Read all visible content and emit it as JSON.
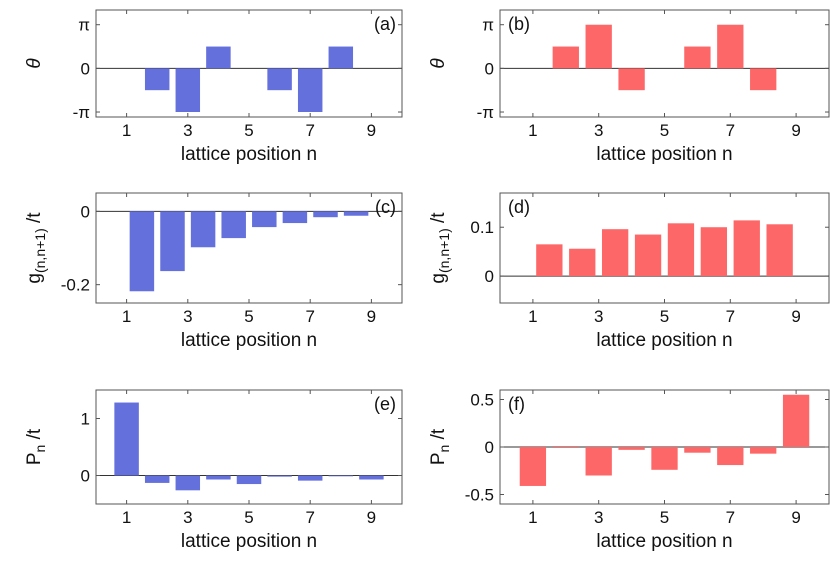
{
  "figure": {
    "bar_colors": {
      "blue": "#6470dc",
      "red": "#fe6767"
    }
  },
  "chart_data": [
    {
      "id": "a",
      "type": "bar",
      "panel_label": "(a)",
      "xlabel": "lattice position n",
      "ylabel": "θ",
      "xlim": [
        0,
        10
      ],
      "xticks": [
        1,
        3,
        5,
        7,
        9
      ],
      "xtick_labels": [
        "1",
        "3",
        "5",
        "7",
        "9"
      ],
      "ylim": [
        -3.5,
        4.2
      ],
      "yticks": [
        -3.14159,
        0,
        3.14159
      ],
      "ytick_labels": [
        "-π",
        "0",
        "π"
      ],
      "color": "#6470dc",
      "x": [
        2,
        3,
        4,
        6,
        7,
        8
      ],
      "values": [
        -1.57,
        -3.14,
        1.57,
        -1.57,
        -3.14,
        1.57
      ],
      "legend": null
    },
    {
      "id": "b",
      "type": "bar",
      "panel_label": "(b)",
      "xlabel": "lattice position n",
      "ylabel": "θ",
      "xlim": [
        0,
        10
      ],
      "xticks": [
        1,
        3,
        5,
        7,
        9
      ],
      "xtick_labels": [
        "1",
        "3",
        "5",
        "7",
        "9"
      ],
      "ylim": [
        -3.5,
        4.2
      ],
      "yticks": [
        -3.14159,
        0,
        3.14159
      ],
      "ytick_labels": [
        "-π",
        "0",
        "π"
      ],
      "color": "#fe6767",
      "x": [
        2,
        3,
        4,
        6,
        7,
        8
      ],
      "values": [
        1.57,
        3.14,
        -1.57,
        1.57,
        3.14,
        -1.57
      ],
      "legend": null
    },
    {
      "id": "c",
      "type": "bar",
      "panel_label": "(c)",
      "xlabel": "lattice position n",
      "ylabel_main": "g",
      "ylabel_sub": "(n,n+1)",
      "ylabel_tail": "/t",
      "xlim": [
        0,
        10
      ],
      "xticks": [
        1,
        3,
        5,
        7,
        9
      ],
      "xtick_labels": [
        "1",
        "3",
        "5",
        "7",
        "9"
      ],
      "ylim": [
        -0.25,
        0.05
      ],
      "yticks": [
        -0.2,
        0
      ],
      "ytick_labels": [
        "-0.2",
        "0"
      ],
      "color": "#6470dc",
      "x": [
        1.5,
        2.5,
        3.5,
        4.5,
        5.5,
        6.5,
        7.5,
        8.5
      ],
      "values": [
        -0.218,
        -0.163,
        -0.098,
        -0.073,
        -0.043,
        -0.032,
        -0.016,
        -0.012
      ],
      "legend": null
    },
    {
      "id": "d",
      "type": "bar",
      "panel_label": "(d)",
      "xlabel": "lattice position n",
      "ylabel_main": "g",
      "ylabel_sub": "(n,n+1)",
      "ylabel_tail": "/t",
      "xlim": [
        0,
        10
      ],
      "xticks": [
        1,
        3,
        5,
        7,
        9
      ],
      "xtick_labels": [
        "1",
        "3",
        "5",
        "7",
        "9"
      ],
      "ylim": [
        -0.055,
        0.17
      ],
      "yticks": [
        0,
        0.1
      ],
      "ytick_labels": [
        "0",
        "0.1"
      ],
      "color": "#fe6767",
      "x": [
        1.5,
        2.5,
        3.5,
        4.5,
        5.5,
        6.5,
        7.5,
        8.5
      ],
      "values": [
        0.065,
        0.056,
        0.096,
        0.085,
        0.108,
        0.1,
        0.114,
        0.106
      ],
      "legend": null
    },
    {
      "id": "e",
      "type": "bar",
      "panel_label": "(e)",
      "xlabel": "lattice position n",
      "ylabel_main": "P",
      "ylabel_sub": "n",
      "ylabel_tail": "/t",
      "xlim": [
        0,
        10
      ],
      "xticks": [
        1,
        3,
        5,
        7,
        9
      ],
      "xtick_labels": [
        "1",
        "3",
        "5",
        "7",
        "9"
      ],
      "ylim": [
        -0.5,
        1.5
      ],
      "yticks": [
        0,
        1
      ],
      "ytick_labels": [
        "0",
        "1"
      ],
      "color": "#6470dc",
      "x": [
        1,
        2,
        3,
        4,
        5,
        6,
        7,
        8,
        9
      ],
      "values": [
        1.28,
        -0.13,
        -0.26,
        -0.07,
        -0.15,
        -0.02,
        -0.09,
        0.0,
        -0.07
      ],
      "legend": null
    },
    {
      "id": "f",
      "type": "bar",
      "panel_label": "(f)",
      "xlabel": "lattice position n",
      "ylabel_main": "P",
      "ylabel_sub": "n",
      "ylabel_tail": "/t",
      "xlim": [
        0,
        10
      ],
      "xticks": [
        1,
        3,
        5,
        7,
        9
      ],
      "xtick_labels": [
        "1",
        "3",
        "5",
        "7",
        "9"
      ],
      "ylim": [
        -0.6,
        0.6
      ],
      "yticks": [
        -0.5,
        0,
        0.5
      ],
      "ytick_labels": [
        "-0.5",
        "0",
        "0.5"
      ],
      "color": "#fe6767",
      "x": [
        1,
        2,
        3,
        4,
        5,
        6,
        7,
        8,
        9
      ],
      "values": [
        -0.41,
        -0.01,
        -0.3,
        -0.03,
        -0.24,
        -0.06,
        -0.19,
        -0.07,
        0.55
      ],
      "legend": null
    }
  ]
}
